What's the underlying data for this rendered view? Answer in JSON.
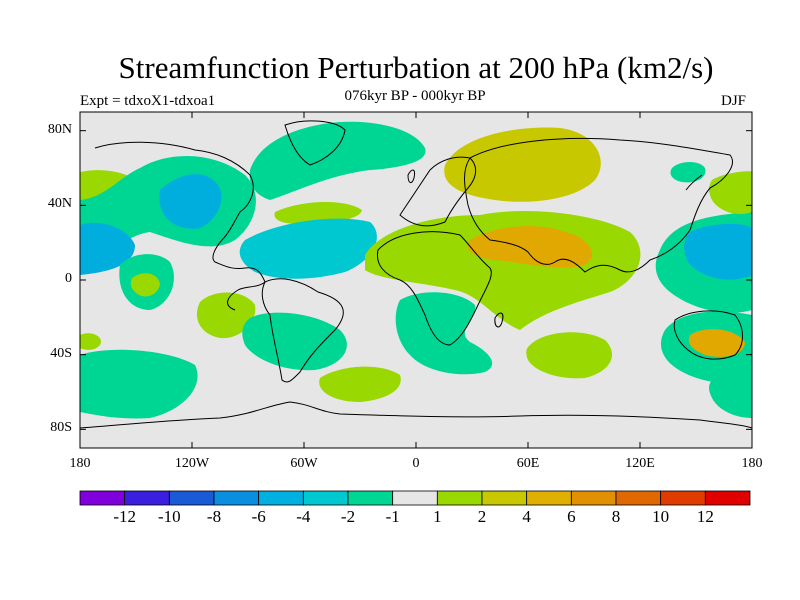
{
  "title": "Streamfunction Perturbation at 200 hPa (km2/s)",
  "subtitle": "076kyr BP - 000kyr BP",
  "experiment_label": "Expt = tdxoX1-tdxoa1",
  "season": "DJF",
  "map": {
    "projection": "cylindrical equidistant",
    "lon_range": [
      -180,
      180
    ],
    "lat_range": [
      -90,
      90
    ],
    "lat_ticks": [
      80,
      40,
      0,
      -40,
      -80
    ],
    "lat_tick_labels": [
      "80N",
      "40N",
      "0",
      "40S",
      "80S"
    ],
    "lon_ticks": [
      -180,
      -120,
      -60,
      0,
      60,
      120,
      180
    ],
    "lon_tick_labels": [
      "180",
      "120W",
      "60W",
      "0",
      "60E",
      "120E",
      "180"
    ],
    "colors": {
      "background": "#e6e6e6",
      "neg_1_to_2": "#00d694",
      "neg_2_to_4": "#00c8d0",
      "neg_4_to_6": "#00aede",
      "pos_1_to_2": "#99d800",
      "pos_2_to_4": "#c8c800",
      "pos_4_to_6": "#e0a800"
    },
    "regions": [
      {
        "name": "north-pacific-positive",
        "color": "#99d800"
      },
      {
        "name": "alaska-canada-negative",
        "color": "#00d694"
      },
      {
        "name": "north-america-core",
        "color": "#00aede"
      },
      {
        "name": "north-atlantic-negative",
        "color": "#00d694"
      },
      {
        "name": "caribbean-negative",
        "color": "#00c8d0"
      },
      {
        "name": "central-pacific-negative",
        "color": "#00aede"
      },
      {
        "name": "eurasia-positive",
        "color": "#c8c800"
      },
      {
        "name": "south-asia-positive",
        "color": "#e0a800"
      },
      {
        "name": "west-pacific-negative",
        "color": "#00aede"
      },
      {
        "name": "south-pacific-positive",
        "color": "#99d800"
      },
      {
        "name": "southern-ocean-negative",
        "color": "#00d694"
      },
      {
        "name": "australia-positive",
        "color": "#e0a800"
      }
    ]
  },
  "colorbar": {
    "colors": [
      "#7f00dc",
      "#3a1fe0",
      "#1a5ad6",
      "#0a8ee0",
      "#00b0e0",
      "#00c8d0",
      "#00d694",
      "#e6e6e6",
      "#99d800",
      "#c8c800",
      "#e0b000",
      "#e09000",
      "#e06800",
      "#e03c00",
      "#e00000"
    ],
    "labels": [
      "-12",
      "-10",
      "-8",
      "-6",
      "-4",
      "-2",
      "-1",
      "1",
      "2",
      "4",
      "6",
      "8",
      "10",
      "12"
    ]
  }
}
